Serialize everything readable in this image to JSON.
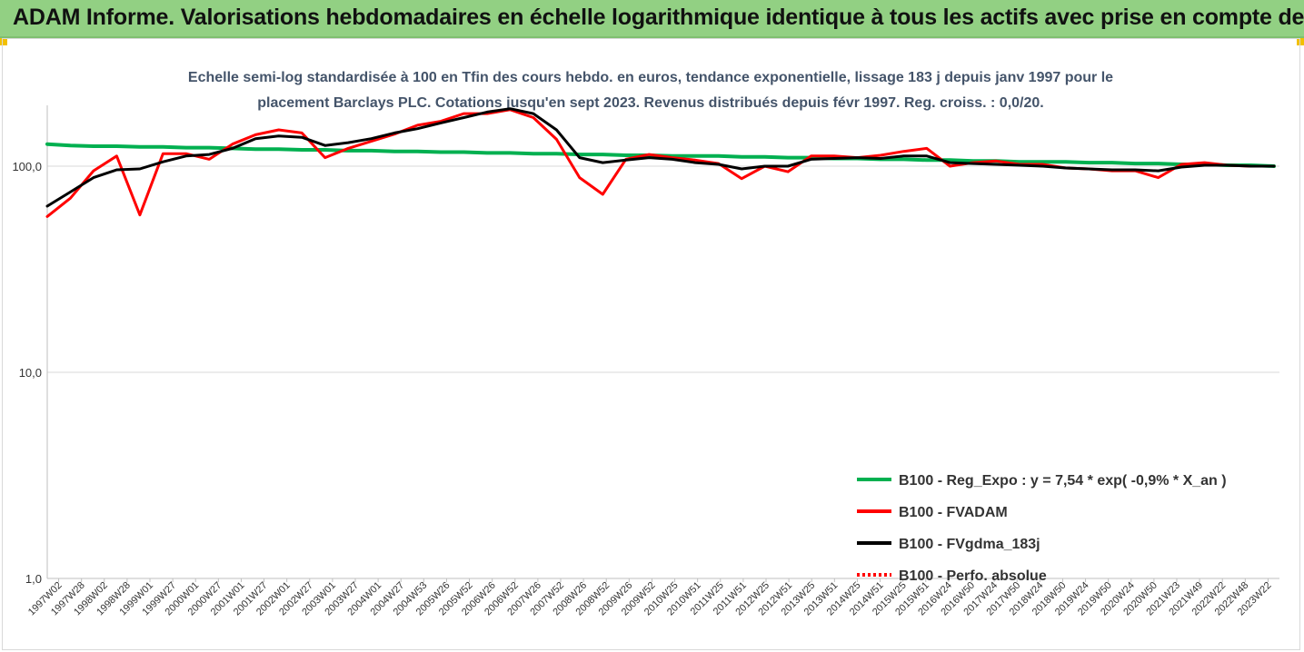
{
  "header": {
    "title": "ADAM Informe. Valorisations hebdomadaires en échelle logarithmique identique à tous les actifs avec prise en compte des revenus co"
  },
  "chart_data": {
    "type": "line",
    "title": "",
    "subtitle_lines": [
      "Echelle semi-log standardisée à 100 en Tfin des cours hebdo. en euros, tendance exponentielle, lissage 183 j depuis janv 1997 pour le",
      "placement Barclays PLC. Cotations jusqu'en sept 2023. Revenus distribués depuis févr 1997. Reg. croiss. : 0,0/20."
    ],
    "y_scale": "log",
    "ylim": [
      1,
      200
    ],
    "y_ticks": [
      {
        "value": 1,
        "label": "1,0"
      },
      {
        "value": 10,
        "label": "10,0"
      },
      {
        "value": 100,
        "label": "100,0"
      }
    ],
    "grid": true,
    "legend_position": "bottom-right",
    "x_ticks": [
      "1997W02",
      "1997W28",
      "1998W02",
      "1998W28",
      "1999W01",
      "1999W27",
      "2000W01",
      "2000W27",
      "2001W01",
      "2001W27",
      "2002W01",
      "2002W27",
      "2003W01",
      "2003W27",
      "2004W01",
      "2004W27",
      "2004W53",
      "2005W26",
      "2005W52",
      "2006W26",
      "2006W52",
      "2007W26",
      "2007W52",
      "2008W26",
      "2008W52",
      "2009W26",
      "2009W52",
      "2010W25",
      "2010W51",
      "2011W25",
      "2011W51",
      "2012W25",
      "2012W51",
      "2013W25",
      "2013W51",
      "2014W25",
      "2014W51",
      "2015W25",
      "2015W51",
      "2016W24",
      "2016W50",
      "2017W24",
      "2017W50",
      "2018W24",
      "2018W50",
      "2019W24",
      "2019W50",
      "2020W24",
      "2020W50",
      "2021W23",
      "2021W49",
      "2022W22",
      "2022W48",
      "2023W22"
    ],
    "series": [
      {
        "name": "B100 - Reg_Expo : y = 7,54 * exp( -0,9% *  X_an )",
        "color": "#00b050",
        "style": "solid",
        "values": [
          128,
          126,
          125,
          125,
          124,
          124,
          123,
          123,
          122,
          121,
          121,
          120,
          120,
          119,
          119,
          118,
          118,
          117,
          117,
          116,
          116,
          115,
          115,
          114,
          114,
          113,
          113,
          112,
          112,
          112,
          111,
          111,
          110,
          110,
          109,
          109,
          108,
          108,
          107,
          107,
          106,
          106,
          105,
          105,
          105,
          104,
          104,
          103,
          103,
          102,
          102,
          101,
          101,
          100
        ]
      },
      {
        "name": "B100 - FVADAM",
        "color": "#ff0000",
        "style": "solid",
        "values": [
          57,
          70,
          95,
          112,
          58,
          115,
          115,
          108,
          128,
          142,
          150,
          145,
          110,
          122,
          132,
          143,
          158,
          165,
          180,
          180,
          188,
          172,
          135,
          88,
          73,
          108,
          114,
          110,
          107,
          103,
          87,
          100,
          94,
          112,
          112,
          110,
          113,
          118,
          122,
          100,
          104,
          106,
          102,
          102,
          98,
          97,
          95,
          95,
          88,
          102,
          104,
          101,
          100,
          100
        ]
      },
      {
        "name": "B100 - FVgdma_183j",
        "color": "#000000",
        "style": "solid",
        "values": [
          64,
          75,
          88,
          96,
          97,
          105,
          112,
          114,
          122,
          136,
          140,
          138,
          126,
          130,
          136,
          145,
          152,
          162,
          172,
          183,
          190,
          180,
          150,
          110,
          104,
          107,
          110,
          108,
          104,
          102,
          97,
          100,
          100,
          108,
          109,
          110,
          109,
          112,
          112,
          104,
          103,
          102,
          101,
          100,
          98,
          97,
          96,
          96,
          95,
          99,
          101,
          101,
          100,
          100
        ]
      },
      {
        "name": "B100 - Perfo. absolue",
        "color": "#ff0000",
        "style": "dotted",
        "values": []
      }
    ]
  }
}
